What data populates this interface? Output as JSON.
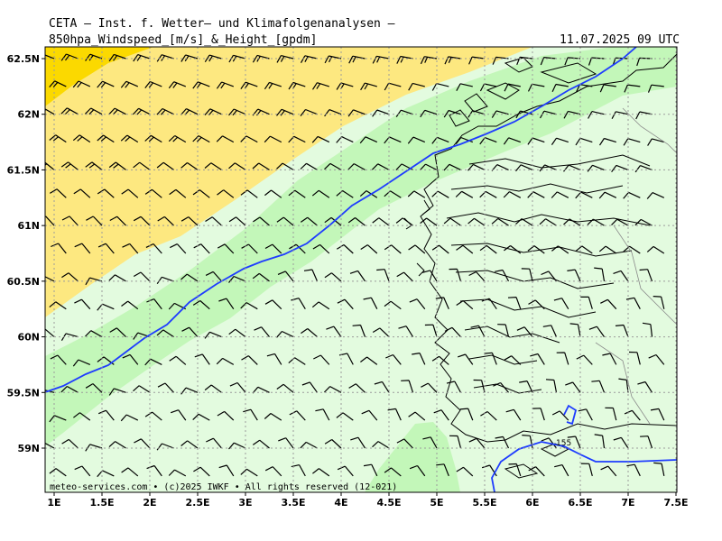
{
  "header": {
    "line1": "CETA — Inst. f. Wetter— und Klimafolgenanalysen —",
    "line2": "850hpa_Windspeed_[m/s]_&_Height_[gpdm]",
    "valid_time": "11.07.2025 09 UTC"
  },
  "footer": "meteo-services.com • (c)2025 IWKF • All rights reserved (12-021)",
  "map": {
    "lon_range": [
      1.0,
      7.5
    ],
    "lat_range": [
      58.6,
      62.6
    ],
    "lon_ticks": [
      "1E",
      "1.5E",
      "2E",
      "2.5E",
      "3E",
      "3.5E",
      "4E",
      "4.5E",
      "5E",
      "5.5E",
      "6E",
      "6.5E",
      "7E",
      "7.5E"
    ],
    "lat_ticks": [
      "62.5N",
      "62N",
      "61.5N",
      "61N",
      "60.5N",
      "60N",
      "59.5N",
      "59N"
    ],
    "contour_label": "155",
    "colors": {
      "very_light_green": "#e3fbdf",
      "light_green": "#c3f7b9",
      "pale_yellow": "#fde880",
      "yellow": "#fbd900",
      "height_contour": "#1e3cff",
      "coastline": "#000000",
      "grid": "#9b9b9b"
    }
  }
}
